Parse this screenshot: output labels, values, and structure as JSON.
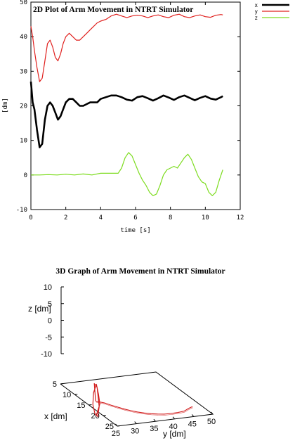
{
  "chart_data": [
    {
      "type": "line",
      "title": "2D Plot of Arm Movement in NTRT Simulator",
      "xlabel": "time [s]",
      "ylabel": "[dm]",
      "xlim": [
        0,
        12
      ],
      "ylim": [
        -10,
        50
      ],
      "xticks": [
        0,
        2,
        4,
        6,
        8,
        10,
        12
      ],
      "yticks": [
        -10,
        0,
        10,
        20,
        30,
        40,
        50
      ],
      "grid": false,
      "legend_position": "outside-top-right",
      "series": [
        {
          "name": "x",
          "color": "#000000",
          "x": [
            0,
            0.1,
            0.2,
            0.35,
            0.5,
            0.65,
            0.8,
            0.95,
            1.1,
            1.25,
            1.4,
            1.55,
            1.7,
            1.85,
            2.0,
            2.2,
            2.4,
            2.6,
            2.8,
            3.0,
            3.2,
            3.4,
            3.6,
            3.8,
            4.0,
            4.3,
            4.6,
            4.9,
            5.2,
            5.5,
            5.8,
            6.1,
            6.4,
            6.7,
            7.0,
            7.3,
            7.6,
            7.9,
            8.2,
            8.5,
            8.8,
            9.1,
            9.4,
            9.7,
            10.0,
            10.3,
            10.6,
            10.9,
            11.0
          ],
          "y": [
            27,
            21,
            19,
            13,
            8,
            9,
            16,
            20,
            21,
            20,
            18,
            16,
            17,
            19,
            21,
            22,
            22,
            21,
            20,
            20,
            20.5,
            21,
            21,
            21,
            22,
            22.5,
            23,
            23,
            22.5,
            21.8,
            21.5,
            22.5,
            22.8,
            22.2,
            21.5,
            22.2,
            23,
            22.4,
            21.7,
            22.5,
            23,
            22.3,
            21.6,
            22.3,
            22.8,
            22.1,
            21.8,
            22.5,
            22.8
          ]
        },
        {
          "name": "y",
          "color": "#e0201e",
          "x": [
            0,
            0.1,
            0.2,
            0.35,
            0.5,
            0.65,
            0.8,
            0.95,
            1.1,
            1.25,
            1.4,
            1.55,
            1.7,
            1.85,
            2.0,
            2.2,
            2.4,
            2.6,
            2.8,
            3.0,
            3.2,
            3.4,
            3.6,
            3.8,
            4.0,
            4.3,
            4.6,
            4.9,
            5.2,
            5.5,
            5.8,
            6.1,
            6.4,
            6.7,
            7.0,
            7.3,
            7.6,
            7.9,
            8.2,
            8.5,
            8.8,
            9.1,
            9.4,
            9.7,
            10.0,
            10.3,
            10.6,
            10.9,
            11.0
          ],
          "y": [
            43,
            40,
            36,
            31,
            27,
            28,
            33,
            38,
            39,
            37,
            34,
            33,
            35,
            38,
            40,
            41,
            40,
            39,
            39,
            40,
            41,
            42,
            43,
            44,
            44.5,
            45,
            46,
            46.5,
            46,
            45.5,
            46,
            46.2,
            46,
            45.5,
            46,
            46.3,
            45.8,
            45.5,
            46.2,
            46.5,
            45.8,
            45.5,
            46,
            46.3,
            45.8,
            45.6,
            46.2,
            46.4,
            46.3
          ]
        },
        {
          "name": "z",
          "color": "#7ddc1f",
          "x": [
            0,
            0.5,
            1.0,
            1.5,
            2.0,
            2.5,
            3.0,
            3.5,
            4.0,
            4.5,
            5.0,
            5.2,
            5.4,
            5.6,
            5.8,
            6.0,
            6.2,
            6.4,
            6.6,
            6.8,
            7.0,
            7.2,
            7.4,
            7.6,
            7.8,
            8.0,
            8.2,
            8.4,
            8.6,
            8.8,
            9.0,
            9.2,
            9.4,
            9.6,
            9.8,
            10.0,
            10.2,
            10.4,
            10.6,
            10.8,
            11.0
          ],
          "y": [
            0,
            0,
            0.1,
            0,
            0.2,
            0,
            0.3,
            0,
            0.5,
            0.5,
            0.5,
            2,
            5,
            6.5,
            5.5,
            3,
            0.5,
            -1.5,
            -3,
            -5,
            -6,
            -5.5,
            -3,
            0,
            1.5,
            2,
            2.5,
            2,
            3.5,
            5,
            6,
            4.5,
            2,
            -0.5,
            -2,
            -2.5,
            -5,
            -6,
            -5,
            -1.5,
            1.5
          ]
        }
      ]
    },
    {
      "type": "line",
      "subtype": "3d-trajectory",
      "title": "3D Graph of Arm Movement in NTRT Simulator",
      "xlabel": "x [dm]",
      "ylabel": "y [dm]",
      "zlabel": "z [dm]",
      "xlim": [
        5,
        25
      ],
      "ylim": [
        25,
        50
      ],
      "zlim": [
        -10,
        10
      ],
      "xticks": [
        5,
        10,
        15,
        20,
        25
      ],
      "yticks": [
        25,
        30,
        35,
        40,
        45,
        50
      ],
      "zticks": [
        -10,
        -5,
        0,
        5,
        10
      ],
      "grid": false,
      "series": [
        {
          "name": "",
          "color": "#d21e1e",
          "x": [
            22.8,
            22.0,
            21.0,
            20.0,
            19.0,
            18.0,
            17.0,
            16.0,
            15.0,
            14.0,
            13.0,
            12.0,
            11.0,
            10.0,
            9.0,
            8.0,
            8.0,
            8.0,
            7.2,
            8.5,
            6.8
          ],
          "y": [
            46.3,
            46.0,
            45.5,
            44.5,
            43.5,
            42.5,
            41.5,
            40.5,
            39.5,
            38.5,
            37.5,
            36.5,
            35.5,
            34.5,
            33.5,
            32.0,
            32.0,
            32.0,
            31.0,
            33.0,
            30.0
          ],
          "z": [
            1.5,
            0.5,
            -1.0,
            -2.0,
            -2.8,
            -3.5,
            -4.0,
            -4.4,
            -4.7,
            -4.9,
            -5.0,
            -5.0,
            -4.9,
            -4.8,
            -4.6,
            -4.5,
            6.5,
            -6.0,
            3.0,
            -3.0,
            -1.0
          ]
        }
      ]
    }
  ]
}
